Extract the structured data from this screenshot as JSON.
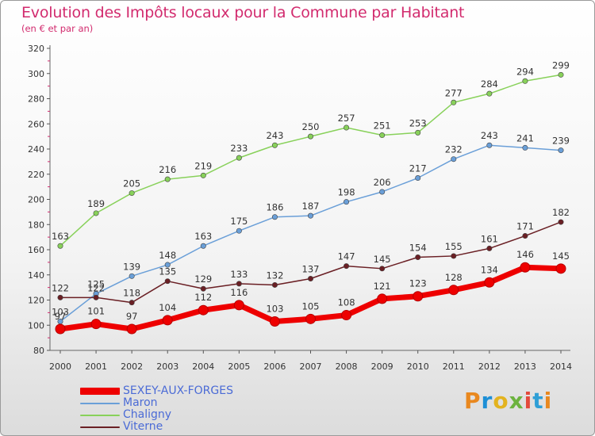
{
  "header": {
    "title": "Evolution des Impôts locaux pour la Commune par Habitant",
    "subtitle": "(en € et par an)"
  },
  "logo": {
    "text": "Proxiti",
    "colors": [
      "#e9881f",
      "#1d8fd6",
      "#e3b31f",
      "#6cb33f",
      "#e34a3c",
      "#2f9fd6",
      "#e9881f"
    ]
  },
  "chart_data": {
    "type": "line",
    "x": [
      2000,
      2001,
      2002,
      2003,
      2004,
      2005,
      2006,
      2007,
      2008,
      2009,
      2010,
      2011,
      2012,
      2013,
      2014
    ],
    "ylim": [
      80,
      320
    ],
    "yticks": [
      80,
      100,
      120,
      140,
      160,
      180,
      200,
      220,
      240,
      260,
      280,
      300,
      320
    ],
    "grid": false,
    "legend_position": "bottom-left",
    "series": [
      {
        "name": "Chaligny",
        "color": "#88d15a",
        "values": [
          163,
          189,
          205,
          216,
          219,
          233,
          243,
          250,
          257,
          251,
          253,
          277,
          284,
          294,
          299
        ]
      },
      {
        "name": "Maron",
        "color": "#6a9fd8",
        "values": [
          103,
          125,
          139,
          148,
          163,
          175,
          186,
          187,
          198,
          206,
          217,
          232,
          243,
          241,
          239
        ]
      },
      {
        "name": "Viterne",
        "color": "#6a1f24",
        "values": [
          122,
          122,
          118,
          135,
          129,
          133,
          132,
          137,
          147,
          145,
          154,
          155,
          161,
          171,
          182
        ]
      },
      {
        "name": "SEXEY-AUX-FORGES",
        "color": "#ee0000",
        "values": [
          97,
          101,
          97,
          104,
          112,
          116,
          103,
          105,
          108,
          121,
          123,
          128,
          134,
          146,
          145
        ]
      }
    ]
  },
  "legend": [
    {
      "label": "SEXEY-AUX-FORGES",
      "color": "#ee0000"
    },
    {
      "label": "Maron",
      "color": "#6a9fd8"
    },
    {
      "label": "Chaligny",
      "color": "#88d15a"
    },
    {
      "label": "Viterne",
      "color": "#6a1f24"
    }
  ]
}
